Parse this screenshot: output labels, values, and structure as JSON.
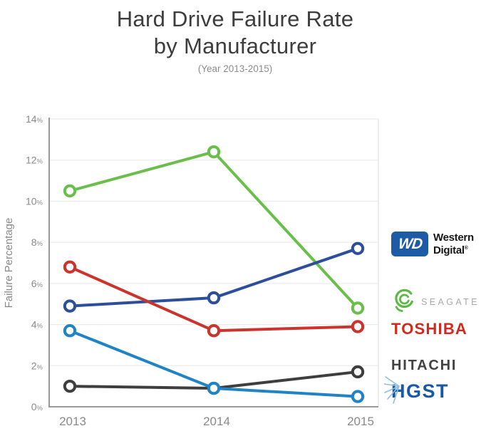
{
  "header": {
    "title": "Hard Drive Failure Rate\nby Manufacturer",
    "subtitle": "(Year 2013-2015)"
  },
  "chart_data": {
    "type": "line",
    "title": "Hard Drive Failure Rate by Manufacturer",
    "subtitle": "(Year 2013-2015)",
    "x": [
      "2013",
      "2014",
      "2015"
    ],
    "xlabel": "",
    "ylabel": "Failure Percentage",
    "ylim": [
      0,
      14
    ],
    "ytick_step": 2,
    "ytick_suffix": "%",
    "grid": true,
    "legend_position": "right-as-brand-logos",
    "marker": "open-circle",
    "series": [
      {
        "name": "Hitachi",
        "color": "#3e3e3e",
        "values": [
          1.0,
          0.9,
          1.7
        ]
      },
      {
        "name": "HGST",
        "color": "#2083c5",
        "values": [
          3.7,
          0.9,
          0.5
        ]
      },
      {
        "name": "Seagate",
        "color": "#6abf4b",
        "values": [
          10.5,
          12.4,
          4.8
        ]
      },
      {
        "name": "Western Digital",
        "color": "#2d4f9b",
        "values": [
          4.9,
          5.3,
          7.7
        ]
      },
      {
        "name": "Toshiba",
        "color": "#cb332d",
        "values": [
          6.8,
          3.7,
          3.9
        ]
      }
    ]
  },
  "legend": {
    "wd": {
      "badge": "WD",
      "line1": "Western",
      "line2": "Digital",
      "registered": "®",
      "badge_color": "#1e5ba7"
    },
    "seagate": {
      "label": "SEAGATE",
      "icon_color": "#5cb947",
      "text_color": "#a7a9ac"
    },
    "toshiba": {
      "label": "TOSHIBA",
      "color": "#d2291e"
    },
    "hitachi": {
      "label": "HITACHI",
      "color": "#424242"
    },
    "hgst": {
      "label": "HGST",
      "color": "#1759a8",
      "rays_color": "#8fbede"
    }
  }
}
